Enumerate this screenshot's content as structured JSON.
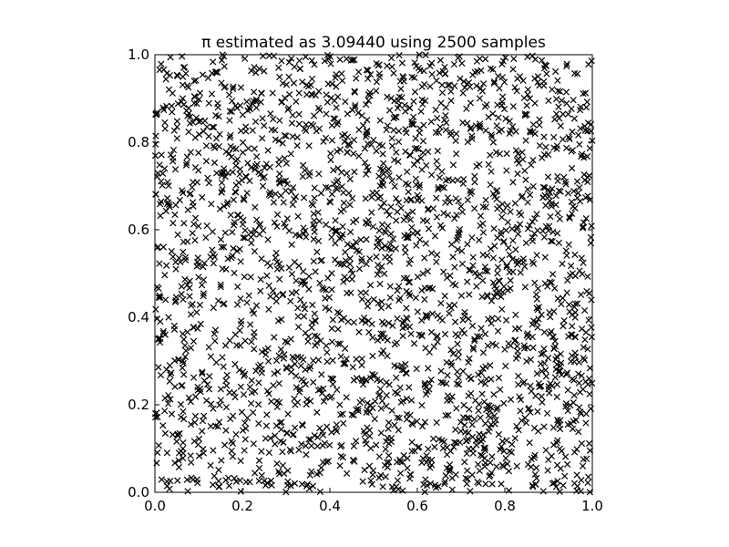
{
  "chart_data": {
    "type": "scatter",
    "title": "π estimated as 3.09440 using 2500 samples",
    "xlabel": "",
    "ylabel": "",
    "xlim": [
      0.0,
      1.0
    ],
    "ylim": [
      0.0,
      1.0
    ],
    "x_ticks": [
      "0.0",
      "0.2",
      "0.4",
      "0.6",
      "0.8",
      "1.0"
    ],
    "y_ticks": [
      "0.0",
      "0.2",
      "0.4",
      "0.6",
      "0.8",
      "1.0"
    ],
    "grid": false,
    "legend": "none",
    "marker": "x",
    "marker_color": "#000000",
    "sample_count": 2500,
    "seed": 12345
  }
}
